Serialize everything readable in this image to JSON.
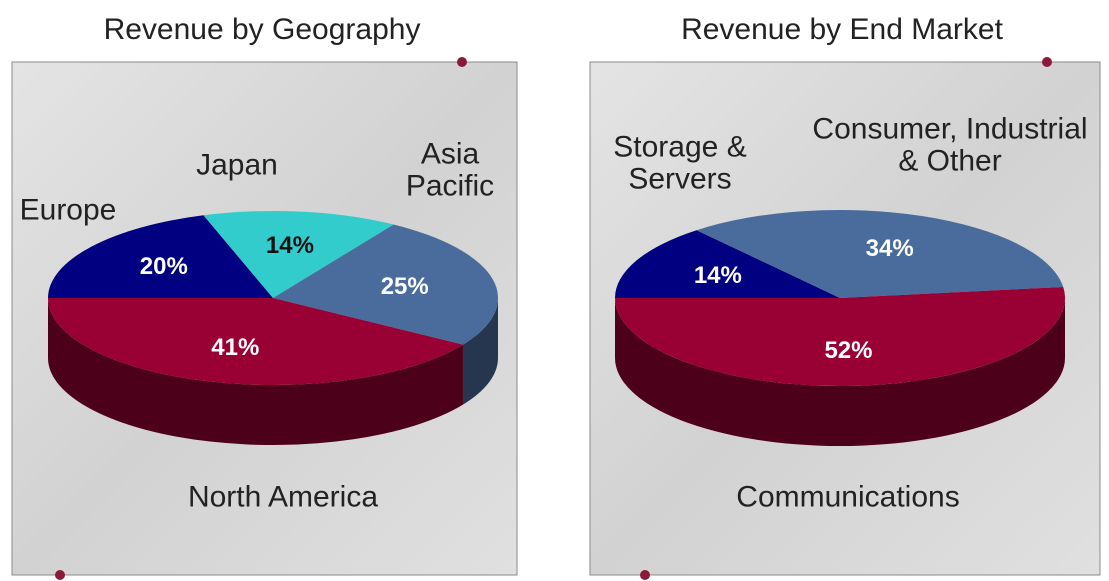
{
  "chart_data": [
    {
      "type": "pie",
      "title": "Revenue by Geography",
      "categories": [
        "Europe",
        "Japan",
        "Asia Pacific",
        "North America"
      ],
      "values": [
        20,
        14,
        25,
        41
      ],
      "value_labels": [
        "20%",
        "14%",
        "25%",
        "41%"
      ],
      "colors": [
        "#000080",
        "#33cccc",
        "#4a6c9c",
        "#990033"
      ]
    },
    {
      "type": "pie",
      "title": "Revenue by End Market",
      "categories": [
        "Storage & Servers",
        "Consumer, Industrial & Other",
        "Communications"
      ],
      "values": [
        14,
        34,
        52
      ],
      "value_labels": [
        "14%",
        "34%",
        "52%"
      ],
      "colors": [
        "#000080",
        "#4a6c9c",
        "#990033"
      ]
    }
  ]
}
